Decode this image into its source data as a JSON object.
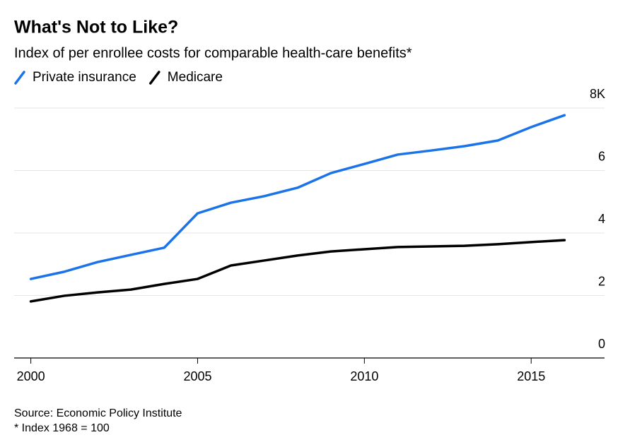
{
  "chart_data": {
    "type": "line",
    "title": "What's Not to Like?",
    "subtitle": "Index of per enrollee costs for comparable health-care benefits*",
    "source": "Source: Economic Policy Institute",
    "footnote": "* Index 1968 = 100",
    "x": [
      2000,
      2001,
      2002,
      2003,
      2004,
      2005,
      2006,
      2007,
      2008,
      2009,
      2010,
      2011,
      2012,
      2013,
      2014,
      2015,
      2016
    ],
    "series": [
      {
        "name": "Private insurance",
        "color": "#1a73e8",
        "values": [
          2.53,
          2.76,
          3.07,
          3.3,
          3.53,
          4.63,
          4.97,
          5.18,
          5.45,
          5.92,
          6.21,
          6.51,
          6.64,
          6.78,
          6.96,
          7.39,
          7.77
        ]
      },
      {
        "name": "Medicare",
        "color": "#000000",
        "values": [
          1.81,
          1.99,
          2.1,
          2.19,
          2.37,
          2.53,
          2.96,
          3.12,
          3.28,
          3.41,
          3.48,
          3.55,
          3.57,
          3.59,
          3.64,
          3.71,
          3.77
        ]
      }
    ],
    "xlim": [
      1999.5,
      2017.2
    ],
    "xticks": [
      2000,
      2005,
      2010,
      2015
    ],
    "ylim": [
      0,
      8
    ],
    "yticks": [
      0,
      2,
      4,
      6,
      {
        "value": 8,
        "label": "8K"
      }
    ],
    "grid": true,
    "legend": "top-left"
  }
}
